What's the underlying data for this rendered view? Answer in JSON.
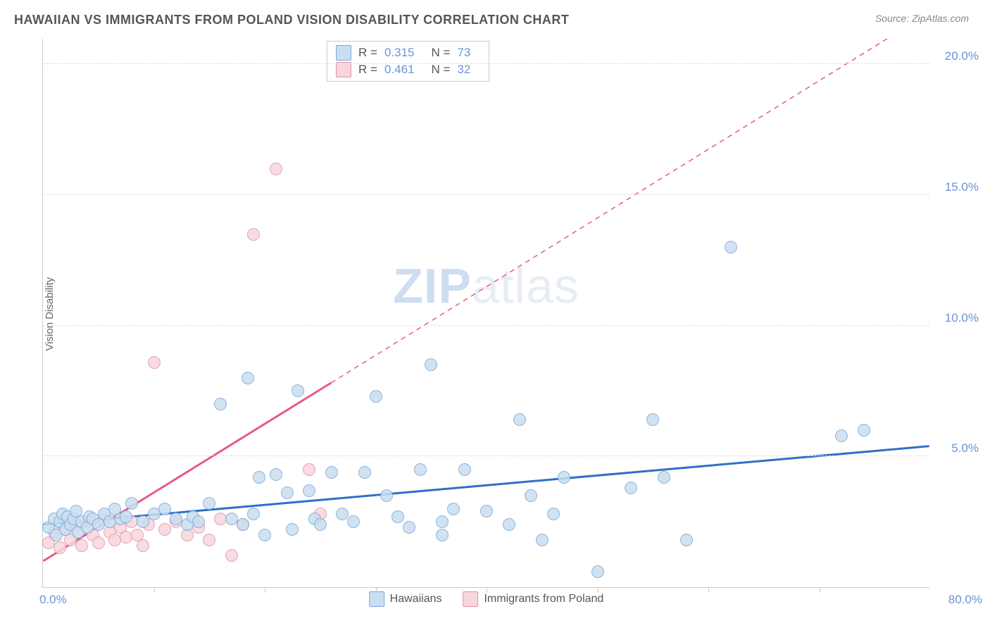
{
  "title": "HAWAIIAN VS IMMIGRANTS FROM POLAND VISION DISABILITY CORRELATION CHART",
  "source": "Source: ZipAtlas.com",
  "watermark_zip": "ZIP",
  "watermark_atlas": "atlas",
  "y_axis_label": "Vision Disability",
  "chart": {
    "type": "scatter",
    "xlim": [
      0,
      80
    ],
    "ylim": [
      0,
      21
    ],
    "x_tick_positions": [
      10,
      20,
      30,
      40,
      50,
      60,
      70
    ],
    "x_tick_labels_shown": {
      "min": "0.0%",
      "max": "80.0%"
    },
    "y_ticks": [
      {
        "v": 5,
        "label": "5.0%"
      },
      {
        "v": 10,
        "label": "10.0%"
      },
      {
        "v": 15,
        "label": "15.0%"
      },
      {
        "v": 20,
        "label": "20.0%"
      }
    ],
    "background_color": "#ffffff",
    "grid_color": "#dddddd",
    "axis_color": "#cccccc",
    "point_radius": 9,
    "point_border_width": 1.2,
    "series": [
      {
        "name": "Hawaiians",
        "fill": "#c9deef",
        "stroke": "#7ba8d9",
        "trend_color": "#2f6fc9",
        "trend_width": 3,
        "trend_dash": "none",
        "trend": {
          "x1": 0,
          "y1": 2.4,
          "x2": 80,
          "y2": 5.4
        },
        "R": "0.315",
        "N": "73",
        "points": [
          [
            0.5,
            2.3
          ],
          [
            1,
            2.6
          ],
          [
            1.2,
            2.0
          ],
          [
            1.5,
            2.5
          ],
          [
            1.8,
            2.8
          ],
          [
            2,
            2.2
          ],
          [
            2.2,
            2.7
          ],
          [
            2.5,
            2.4
          ],
          [
            2.8,
            2.6
          ],
          [
            3,
            2.9
          ],
          [
            3.2,
            2.1
          ],
          [
            3.5,
            2.5
          ],
          [
            4,
            2.3
          ],
          [
            4.2,
            2.7
          ],
          [
            4.5,
            2.6
          ],
          [
            5,
            2.4
          ],
          [
            5.5,
            2.8
          ],
          [
            6,
            2.5
          ],
          [
            6.5,
            3.0
          ],
          [
            7,
            2.6
          ],
          [
            7.5,
            2.7
          ],
          [
            8,
            3.2
          ],
          [
            9,
            2.5
          ],
          [
            10,
            2.8
          ],
          [
            11,
            3.0
          ],
          [
            12,
            2.6
          ],
          [
            13,
            2.4
          ],
          [
            13.5,
            2.7
          ],
          [
            14,
            2.5
          ],
          [
            15,
            3.2
          ],
          [
            16,
            7.0
          ],
          [
            17,
            2.6
          ],
          [
            18,
            2.4
          ],
          [
            18.5,
            8.0
          ],
          [
            19,
            2.8
          ],
          [
            19.5,
            4.2
          ],
          [
            20,
            2.0
          ],
          [
            21,
            4.3
          ],
          [
            22,
            3.6
          ],
          [
            22.5,
            2.2
          ],
          [
            23,
            7.5
          ],
          [
            24,
            3.7
          ],
          [
            24.5,
            2.6
          ],
          [
            25,
            2.4
          ],
          [
            26,
            4.4
          ],
          [
            27,
            2.8
          ],
          [
            28,
            2.5
          ],
          [
            29,
            4.4
          ],
          [
            30,
            7.3
          ],
          [
            31,
            3.5
          ],
          [
            32,
            2.7
          ],
          [
            33,
            2.3
          ],
          [
            34,
            4.5
          ],
          [
            35,
            8.5
          ],
          [
            36,
            2.5
          ],
          [
            37,
            3.0
          ],
          [
            38,
            4.5
          ],
          [
            40,
            2.9
          ],
          [
            42,
            2.4
          ],
          [
            43,
            6.4
          ],
          [
            44,
            3.5
          ],
          [
            45,
            1.8
          ],
          [
            46,
            2.8
          ],
          [
            47,
            4.2
          ],
          [
            50,
            0.6
          ],
          [
            53,
            3.8
          ],
          [
            55,
            6.4
          ],
          [
            56,
            4.2
          ],
          [
            58,
            1.8
          ],
          [
            62,
            13.0
          ],
          [
            72,
            5.8
          ],
          [
            74,
            6.0
          ],
          [
            36,
            2.0
          ]
        ]
      },
      {
        "name": "Immigrants from Poland",
        "fill": "#f7d6dd",
        "stroke": "#e193a8",
        "trend_color": "#e65b84",
        "trend_width": 3,
        "trend_dash_solid_until_x": 26,
        "trend_dash": "7,6",
        "trend": {
          "x1": 0,
          "y1": 1.0,
          "x2": 80,
          "y2": 22.0
        },
        "R": "0.461",
        "N": "32",
        "points": [
          [
            0.5,
            1.7
          ],
          [
            1,
            2.1
          ],
          [
            1.5,
            1.5
          ],
          [
            2,
            2.2
          ],
          [
            2.5,
            1.8
          ],
          [
            3,
            2.4
          ],
          [
            3.5,
            1.6
          ],
          [
            4,
            2.5
          ],
          [
            4.5,
            2.0
          ],
          [
            5,
            1.7
          ],
          [
            5.5,
            2.6
          ],
          [
            6,
            2.1
          ],
          [
            6.5,
            1.8
          ],
          [
            7,
            2.3
          ],
          [
            7.5,
            1.9
          ],
          [
            8,
            2.5
          ],
          [
            8.5,
            2.0
          ],
          [
            9,
            1.6
          ],
          [
            9.5,
            2.4
          ],
          [
            10,
            8.6
          ],
          [
            11,
            2.2
          ],
          [
            12,
            2.5
          ],
          [
            13,
            2.0
          ],
          [
            14,
            2.3
          ],
          [
            15,
            1.8
          ],
          [
            16,
            2.6
          ],
          [
            17,
            1.2
          ],
          [
            18,
            2.4
          ],
          [
            19,
            13.5
          ],
          [
            21,
            16.0
          ],
          [
            24,
            4.5
          ],
          [
            25,
            2.8
          ]
        ]
      }
    ]
  },
  "stats_box": {
    "rows": [
      {
        "swatch_fill": "#c9deef",
        "swatch_stroke": "#7ba8d9",
        "R_label": "R =",
        "R": "0.315",
        "N_label": "N =",
        "N": "73"
      },
      {
        "swatch_fill": "#f7d6dd",
        "swatch_stroke": "#e193a8",
        "R_label": "R =",
        "R": "0.461",
        "N_label": "N =",
        "N": "32"
      }
    ]
  },
  "bottom_legend": [
    {
      "swatch_fill": "#c9deef",
      "swatch_stroke": "#7ba8d9",
      "label": "Hawaiians"
    },
    {
      "swatch_fill": "#f7d6dd",
      "swatch_stroke": "#e193a8",
      "label": "Immigrants from Poland"
    }
  ]
}
